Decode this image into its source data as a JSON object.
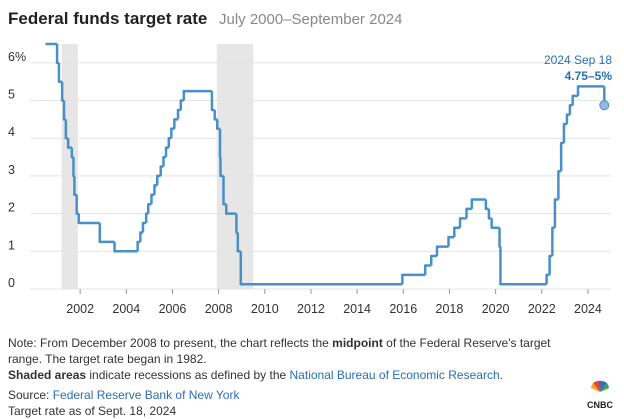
{
  "chart_data": {
    "type": "step",
    "title": "Federal funds target rate",
    "subtitle": "July 2000–September 2024",
    "x": [
      2000.5,
      2001.0,
      2001.08,
      2001.22,
      2001.3,
      2001.38,
      2001.48,
      2001.64,
      2001.71,
      2001.75,
      2001.85,
      2001.94,
      2002.85,
      2003.49,
      2004.49,
      2004.61,
      2004.72,
      2004.86,
      2004.95,
      2005.09,
      2005.22,
      2005.34,
      2005.49,
      2005.61,
      2005.72,
      2005.84,
      2005.95,
      2006.08,
      2006.24,
      2006.36,
      2006.49,
      2007.71,
      2007.83,
      2007.94,
      2008.06,
      2008.08,
      2008.21,
      2008.33,
      2008.77,
      2008.83,
      2008.96,
      2015.96,
      2016.95,
      2017.21,
      2017.46,
      2017.96,
      2018.21,
      2018.46,
      2018.74,
      2018.97,
      2019.58,
      2019.71,
      2019.83,
      2020.17,
      2020.21,
      2022.21,
      2022.34,
      2022.46,
      2022.57,
      2022.72,
      2022.84,
      2022.96,
      2023.09,
      2023.22,
      2023.34,
      2023.57,
      2024.71
    ],
    "series": [
      {
        "name": "Federal funds target rate",
        "color": "#4a90c8",
        "values": [
          6.5,
          6.0,
          5.5,
          5.0,
          4.5,
          4.0,
          3.75,
          3.5,
          3.0,
          2.5,
          2.0,
          1.75,
          1.25,
          1.0,
          1.25,
          1.5,
          1.75,
          2.0,
          2.25,
          2.5,
          2.75,
          3.0,
          3.25,
          3.5,
          3.75,
          4.0,
          4.25,
          4.5,
          4.75,
          5.0,
          5.25,
          4.75,
          4.5,
          4.25,
          3.5,
          3.0,
          2.25,
          2.0,
          1.5,
          1.0,
          0.125,
          0.375,
          0.625,
          0.875,
          1.125,
          1.375,
          1.625,
          1.875,
          2.125,
          2.375,
          2.125,
          1.875,
          1.625,
          1.125,
          0.125,
          0.375,
          0.875,
          1.625,
          2.375,
          3.125,
          3.875,
          4.375,
          4.625,
          4.875,
          5.125,
          5.375,
          4.875
        ]
      }
    ],
    "recessions": [
      [
        2001.2,
        2001.9
      ],
      [
        2007.92,
        2009.5
      ]
    ],
    "xlim": [
      2000,
      2025
    ],
    "xticks": [
      2002,
      2004,
      2006,
      2008,
      2010,
      2012,
      2014,
      2016,
      2018,
      2020,
      2022,
      2024
    ],
    "ylim": [
      0,
      6.5
    ],
    "yticks": [
      0,
      1,
      2,
      3,
      4,
      5,
      {
        "value": 6,
        "label": "6%"
      }
    ],
    "grid": true,
    "annotation": {
      "date": "2024 Sep 18",
      "range": "4.75–5%"
    }
  },
  "notes": {
    "note": [
      "Note: From December 2008 to present, the chart reflects the ",
      "midpoint",
      " of the Federal Reserve's target range. The target rate began in 1982."
    ],
    "shaded": [
      "Shaded areas",
      " indicate recessions as defined by the ",
      "National Bureau of Economic Research",
      "."
    ],
    "source": [
      "Source: ",
      "Federal Reserve Bank of New York"
    ],
    "asof": "Target rate as of Sept. 18, 2024"
  },
  "logo": "CNBC"
}
